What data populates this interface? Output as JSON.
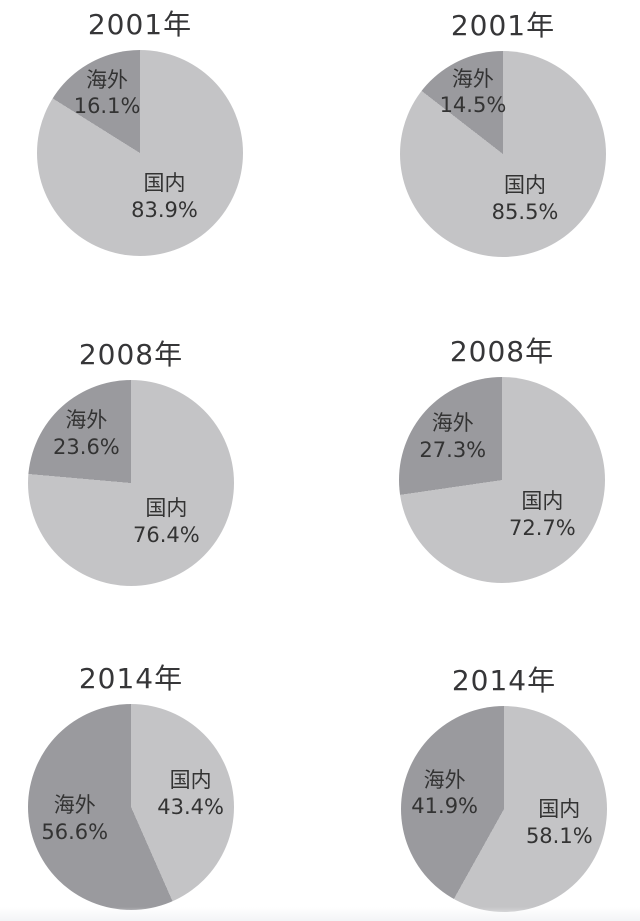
{
  "page": {
    "background": "#ffffff",
    "bottom_strip_color": "#f3f4f6"
  },
  "colors": {
    "domestic": "#c4c4c6",
    "overseas": "#9a9a9e",
    "label_text": "#333333",
    "title_text": "#363638"
  },
  "chart_data": [
    {
      "type": "pie",
      "title": "2001年",
      "position": "row-1-left",
      "start_angle_deg": 0,
      "direction": "clockwise",
      "legend": "none",
      "slices": [
        {
          "key": "domestic",
          "name": "国内",
          "value": 83.9,
          "pct_text": "83.9%"
        },
        {
          "key": "overseas",
          "name": "海外",
          "value": 16.1,
          "pct_text": "16.1%"
        }
      ]
    },
    {
      "type": "pie",
      "title": "2001年",
      "position": "row-1-right",
      "start_angle_deg": 0,
      "direction": "clockwise",
      "legend": "none",
      "slices": [
        {
          "key": "domestic",
          "name": "国内",
          "value": 85.5,
          "pct_text": "85.5%"
        },
        {
          "key": "overseas",
          "name": "海外",
          "value": 14.5,
          "pct_text": "14.5%"
        }
      ]
    },
    {
      "type": "pie",
      "title": "2008年",
      "position": "row-2-left",
      "start_angle_deg": 0,
      "direction": "clockwise",
      "legend": "none",
      "slices": [
        {
          "key": "domestic",
          "name": "国内",
          "value": 76.4,
          "pct_text": "76.4%"
        },
        {
          "key": "overseas",
          "name": "海外",
          "value": 23.6,
          "pct_text": "23.6%"
        }
      ]
    },
    {
      "type": "pie",
      "title": "2008年",
      "position": "row-2-right",
      "start_angle_deg": 0,
      "direction": "clockwise",
      "legend": "none",
      "slices": [
        {
          "key": "domestic",
          "name": "国内",
          "value": 72.7,
          "pct_text": "72.7%"
        },
        {
          "key": "overseas",
          "name": "海外",
          "value": 27.3,
          "pct_text": "27.3%"
        }
      ]
    },
    {
      "type": "pie",
      "title": "2014年",
      "position": "row-3-left",
      "start_angle_deg": 0,
      "direction": "clockwise",
      "legend": "none",
      "slices": [
        {
          "key": "domestic",
          "name": "国内",
          "value": 43.4,
          "pct_text": "43.4%"
        },
        {
          "key": "overseas",
          "name": "海外",
          "value": 56.6,
          "pct_text": "56.6%"
        }
      ]
    },
    {
      "type": "pie",
      "title": "2014年",
      "position": "row-3-right",
      "start_angle_deg": 0,
      "direction": "clockwise",
      "legend": "none",
      "slices": [
        {
          "key": "domestic",
          "name": "国内",
          "value": 58.1,
          "pct_text": "58.1%"
        },
        {
          "key": "overseas",
          "name": "海外",
          "value": 41.9,
          "pct_text": "41.9%"
        }
      ]
    }
  ]
}
